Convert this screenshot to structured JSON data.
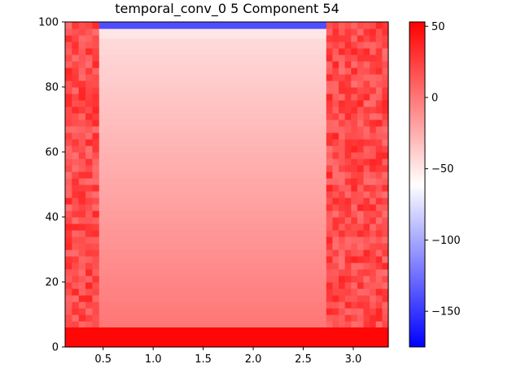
{
  "chart_data": {
    "type": "heatmap",
    "title": "temporal_conv_0 5 Component 54",
    "xlabel": "",
    "ylabel": "",
    "xlim": [
      0.12,
      3.35
    ],
    "ylim": [
      0,
      100
    ],
    "x_ticks": [
      0.5,
      1.0,
      1.5,
      2.0,
      2.5,
      3.0
    ],
    "x_tick_labels": [
      "0.5",
      "1.0",
      "1.5",
      "2.0",
      "2.5",
      "3.0"
    ],
    "y_ticks": [
      0,
      20,
      40,
      60,
      80,
      100
    ],
    "y_tick_labels": [
      "0",
      "20",
      "40",
      "60",
      "80",
      "100"
    ],
    "colormap": "bwr",
    "colorbar": {
      "vmin": -175,
      "vmax": 53,
      "ticks": [
        50,
        0,
        -50,
        -100,
        -150
      ],
      "tick_labels": [
        "50",
        "0",
        "−50",
        "−100",
        "−150"
      ]
    },
    "regions": [
      {
        "name": "left band",
        "x_range": [
          0.12,
          0.46
        ],
        "y_range": [
          6,
          100
        ],
        "approx_value": 20,
        "note": "noisy red, roughly 5 to 35"
      },
      {
        "name": "central block",
        "x_range": [
          0.46,
          2.73
        ],
        "y_range": [
          6,
          95
        ],
        "approx_value_bottom": 0,
        "approx_value_top": -45,
        "note": "smooth gradient, redder toward bottom"
      },
      {
        "name": "central top edge",
        "x_range": [
          0.46,
          2.73
        ],
        "y_range": [
          95,
          98
        ],
        "approx_value": -50
      },
      {
        "name": "top blue strip",
        "x_range": [
          0.46,
          2.73
        ],
        "y_range": [
          98,
          100
        ],
        "approx_value": -140
      },
      {
        "name": "right band",
        "x_range": [
          2.73,
          3.35
        ],
        "y_range": [
          6,
          100
        ],
        "approx_value": 20,
        "note": "noisy red, roughly 5 to 35"
      },
      {
        "name": "bottom strip",
        "x_range": [
          0.12,
          3.35
        ],
        "y_range": [
          0,
          6
        ],
        "approx_value": 50
      }
    ]
  }
}
